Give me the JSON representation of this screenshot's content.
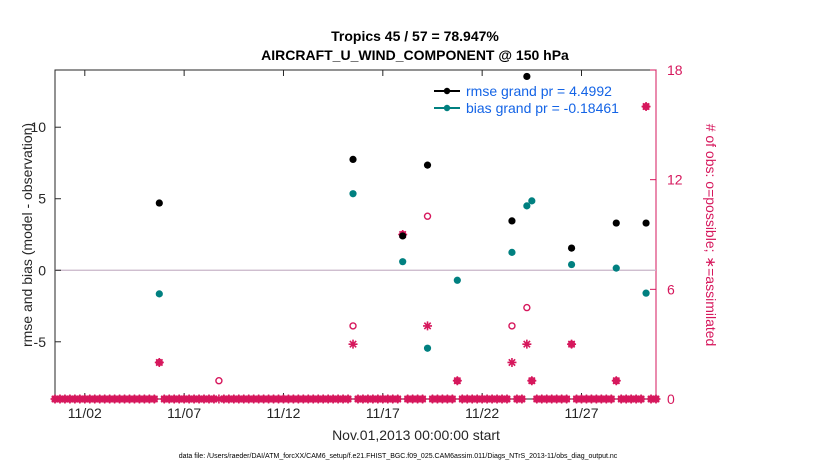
{
  "chart_data": {
    "type": "scatter",
    "title": "Tropics 45 / 57 = 78.947%",
    "subtitle": "AIRCRAFT_U_WIND_COMPONENT @ 150 hPa",
    "xlabel": "Nov.01,2013 00:00:00 start",
    "ylabel": "rmse and bias (model - observation)",
    "y2label": "# of obs: o=possible; ∗=assimilated",
    "footnote": "data file: /Users/raeder/DAI/ATM_forcXX/CAM6_setup/f.e21.FHIST_BGC.f09_025.CAM6assim.011/Diags_NTrS_2013-11/obs_diag_output.nc",
    "xlim": [
      0.5,
      30.75
    ],
    "ylim": [
      -9,
      14
    ],
    "y2lim": [
      0,
      18
    ],
    "x_ticks": [
      {
        "v": 2,
        "label": "11/02"
      },
      {
        "v": 7,
        "label": "11/07"
      },
      {
        "v": 12,
        "label": "11/12"
      },
      {
        "v": 17,
        "label": "11/17"
      },
      {
        "v": 22,
        "label": "11/22"
      },
      {
        "v": 27,
        "label": "11/27"
      }
    ],
    "y_ticks": [
      {
        "v": -5,
        "label": "-5"
      },
      {
        "v": 0,
        "label": "0"
      },
      {
        "v": 5,
        "label": "5"
      },
      {
        "v": 10,
        "label": "10"
      }
    ],
    "y2_ticks": [
      {
        "v": 0,
        "label": "0"
      },
      {
        "v": 6,
        "label": "6"
      },
      {
        "v": 12,
        "label": "12"
      },
      {
        "v": 18,
        "label": "18"
      }
    ],
    "zero_line": 0,
    "colors": {
      "rmse": "#000000",
      "bias": "#008080",
      "obs": "#d6175c",
      "legend_text": "#1464e6",
      "zero": "#c8b4c8"
    },
    "series": [
      {
        "name": "rmse grand pr = 4.4992",
        "key": "rmse",
        "points": [
          [
            5.75,
            4.7
          ],
          [
            15.5,
            7.75
          ],
          [
            18.0,
            2.4
          ],
          [
            19.25,
            7.35
          ],
          [
            23.5,
            3.45
          ],
          [
            24.25,
            13.55
          ],
          [
            26.5,
            1.55
          ],
          [
            28.75,
            3.3
          ],
          [
            30.25,
            3.3
          ]
        ]
      },
      {
        "name": "bias grand pr = -0.18461",
        "key": "bias",
        "points": [
          [
            5.75,
            -1.65
          ],
          [
            15.5,
            5.35
          ],
          [
            18.0,
            0.6
          ],
          [
            19.25,
            -5.45
          ],
          [
            20.75,
            -0.7
          ],
          [
            23.5,
            1.25
          ],
          [
            24.25,
            4.5
          ],
          [
            24.5,
            4.85
          ],
          [
            26.5,
            0.4
          ],
          [
            28.75,
            0.15
          ],
          [
            30.25,
            -1.6
          ]
        ]
      }
    ],
    "obs_possible": {
      "x_start": 0.5,
      "x_step": 0.25,
      "count": 122,
      "default": 0,
      "overrides": [
        [
          5.75,
          2
        ],
        [
          8.75,
          1
        ],
        [
          15.5,
          4
        ],
        [
          18.0,
          9
        ],
        [
          19.25,
          10
        ],
        [
          20.75,
          1
        ],
        [
          23.5,
          4
        ],
        [
          24.25,
          5
        ],
        [
          24.5,
          1
        ],
        [
          26.5,
          3
        ],
        [
          28.75,
          1
        ],
        [
          30.25,
          16
        ]
      ]
    },
    "obs_assimilated": {
      "x_start": 0.5,
      "x_step": 0.25,
      "count": 122,
      "default": 0,
      "overrides": [
        [
          5.75,
          2
        ],
        [
          15.5,
          3
        ],
        [
          18.0,
          9
        ],
        [
          19.25,
          4
        ],
        [
          20.75,
          1
        ],
        [
          23.5,
          2
        ],
        [
          24.25,
          3
        ],
        [
          24.5,
          1
        ],
        [
          26.5,
          3
        ],
        [
          28.75,
          1
        ],
        [
          30.25,
          16
        ]
      ]
    }
  }
}
